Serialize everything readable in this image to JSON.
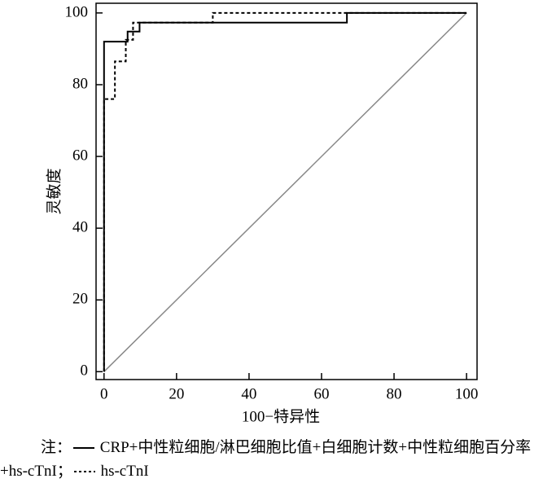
{
  "chart_data": {
    "type": "line",
    "xlabel": "100−特异性",
    "ylabel": "灵敏度",
    "xlim": [
      -2.2,
      102.9
    ],
    "ylim": [
      -2.2,
      102.7
    ],
    "xticks": [
      0,
      20,
      40,
      60,
      80,
      100
    ],
    "yticks": [
      0,
      20,
      40,
      60,
      80,
      100
    ],
    "series": [
      {
        "name": "CRP+中性粒细胞/淋巴细胞比值+白细胞计数+中性粒细胞百分率+hs-cTnI",
        "color": "#000000",
        "dash": false,
        "x": [
          0,
          0,
          6.5,
          6.5,
          9.8,
          9.8,
          67,
          67,
          100
        ],
        "values": [
          0,
          92,
          92,
          94.8,
          94.8,
          97.3,
          97.3,
          100,
          100
        ]
      },
      {
        "name": "hs-cTnI",
        "color": "#000000",
        "dash": true,
        "x": [
          0,
          0,
          3,
          3,
          6,
          6,
          8,
          8,
          30,
          30,
          100
        ],
        "values": [
          0,
          76,
          76,
          86.5,
          86.5,
          92.5,
          92.5,
          97.3,
          97.3,
          100,
          100
        ]
      }
    ],
    "reference_line": {
      "x": [
        0,
        100
      ],
      "values": [
        0,
        100
      ],
      "color": "#888888"
    },
    "note_prefix": "注：",
    "separator": "；"
  }
}
